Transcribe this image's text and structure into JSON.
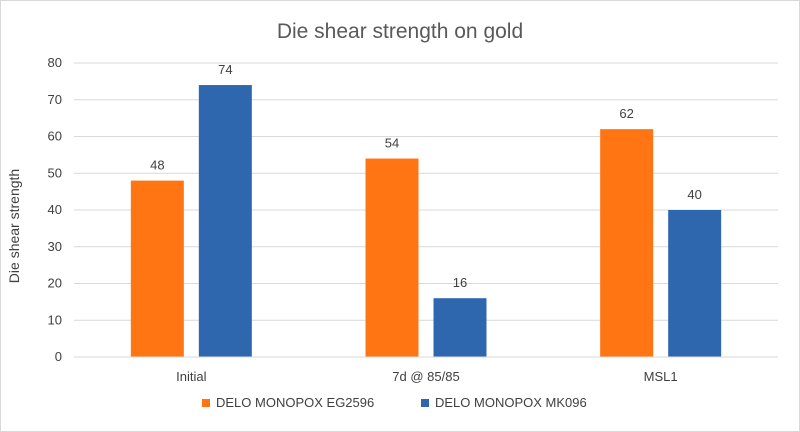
{
  "chart_data": {
    "type": "bar",
    "title": "Die shear strength on gold",
    "xlabel": "",
    "ylabel": "Die shear strength",
    "categories": [
      "Initial",
      "7d @ 85/85",
      "MSL1"
    ],
    "series": [
      {
        "name": "DELO MONOPOX EG2596",
        "color": "#FF7514",
        "values": [
          48,
          54,
          62
        ]
      },
      {
        "name": "DELO MONOPOX MK096",
        "color": "#2F67AF",
        "values": [
          74,
          16,
          40
        ]
      }
    ],
    "ylim": [
      0,
      80
    ],
    "yticks": [
      0,
      10,
      20,
      30,
      40,
      50,
      60,
      70,
      80
    ],
    "grid": true,
    "legend_position": "bottom"
  }
}
